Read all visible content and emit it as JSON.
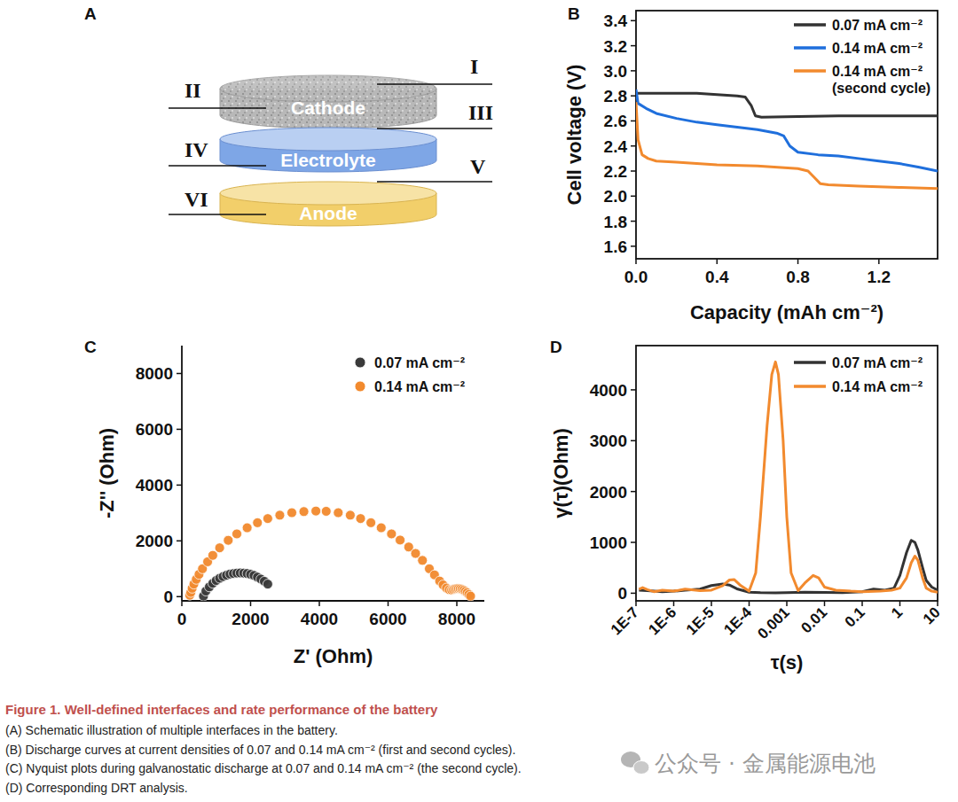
{
  "diagram": {
    "panel": "A",
    "layers": [
      "Cathode",
      "Electrolyte",
      "Anode"
    ],
    "interfaces": [
      "I",
      "II",
      "III",
      "IV",
      "V",
      "VI"
    ]
  },
  "chart_data": [
    {
      "type": "line",
      "panel": "B",
      "x_label": "Capacity (mAh cm⁻²)",
      "y_label": "Cell voltage (V)",
      "xlim": [
        0,
        1.49
      ],
      "ylim": [
        1.5,
        3.48
      ],
      "xticks": [
        {
          "value": 0,
          "label": "0.0"
        },
        0.4,
        0.8,
        1.2
      ],
      "yticks": [
        1.6,
        1.8,
        {
          "value": 2.0,
          "label": "2.0"
        },
        2.2,
        2.4,
        2.6,
        2.8,
        {
          "value": 3.0,
          "label": "3.0"
        },
        3.2,
        3.4
      ],
      "legend": "upper right",
      "series": [
        {
          "name": "0.07 mA cm⁻²",
          "color": "#333333",
          "x": [
            0,
            0.005,
            0.1,
            0.2,
            0.3,
            0.4,
            0.5,
            0.54,
            0.57,
            0.59,
            0.62,
            0.8,
            1.0,
            1.2,
            1.49
          ],
          "values": [
            2.8,
            2.82,
            2.82,
            2.82,
            2.82,
            2.81,
            2.8,
            2.79,
            2.72,
            2.64,
            2.63,
            2.635,
            2.64,
            2.64,
            2.64
          ]
        },
        {
          "name": "0.14 mA cm⁻²",
          "color": "#1f6fdc",
          "x": [
            0,
            0.01,
            0.05,
            0.1,
            0.2,
            0.3,
            0.4,
            0.5,
            0.6,
            0.7,
            0.73,
            0.76,
            0.8,
            0.9,
            1.0,
            1.1,
            1.2,
            1.3,
            1.4,
            1.49
          ],
          "values": [
            2.85,
            2.74,
            2.7,
            2.66,
            2.62,
            2.59,
            2.57,
            2.55,
            2.53,
            2.5,
            2.48,
            2.4,
            2.35,
            2.33,
            2.32,
            2.3,
            2.28,
            2.26,
            2.23,
            2.2
          ]
        },
        {
          "name": "0.14 mA cm⁻² (second cycle)",
          "color": "#f28a2e",
          "x": [
            0,
            0.01,
            0.03,
            0.06,
            0.1,
            0.2,
            0.4,
            0.6,
            0.8,
            0.85,
            0.88,
            0.91,
            0.95,
            1.1,
            1.3,
            1.49
          ],
          "values": [
            2.75,
            2.45,
            2.33,
            2.3,
            2.28,
            2.27,
            2.25,
            2.24,
            2.22,
            2.2,
            2.15,
            2.1,
            2.09,
            2.08,
            2.07,
            2.06
          ]
        }
      ]
    },
    {
      "type": "scatter",
      "panel": "C",
      "x_label": "Z' (Ohm)",
      "y_label": "-Z'' (Ohm)",
      "xlim": [
        0,
        8800
      ],
      "ylim": [
        -150,
        9000
      ],
      "xticks": [
        0,
        2000,
        4000,
        6000,
        8000
      ],
      "yticks": [
        0,
        2000,
        4000,
        6000,
        8000
      ],
      "legend": "upper right",
      "marker": "circle",
      "series": [
        {
          "name": "0.07 mA cm⁻²",
          "color": "#3a3a3a",
          "x": [
            630,
            700,
            800,
            900,
            1000,
            1100,
            1200,
            1300,
            1400,
            1500,
            1600,
            1700,
            1800,
            1900,
            2000,
            2100,
            2200,
            2300,
            2400,
            2500
          ],
          "values": [
            20,
            200,
            350,
            480,
            580,
            660,
            720,
            770,
            810,
            830,
            845,
            850,
            845,
            830,
            800,
            760,
            700,
            630,
            550,
            450
          ]
        },
        {
          "name": "0.14 mA cm⁻²",
          "color": "#f28a2e",
          "x": [
            230,
            260,
            300,
            350,
            420,
            500,
            600,
            750,
            900,
            1100,
            1350,
            1600,
            1900,
            2200,
            2500,
            2850,
            3200,
            3550,
            3900,
            4200,
            4550,
            4900,
            5200,
            5500,
            5800,
            6100,
            6350,
            6600,
            6800,
            7000,
            7200,
            7350,
            7500,
            7600,
            7700,
            7780,
            7850,
            7900,
            7950,
            8000,
            8050,
            8100,
            8150,
            8200,
            8250,
            8300,
            8350,
            8400
          ],
          "values": [
            50,
            150,
            300,
            450,
            620,
            800,
            1000,
            1250,
            1480,
            1750,
            2020,
            2250,
            2470,
            2650,
            2800,
            2920,
            3010,
            3050,
            3070,
            3060,
            3010,
            2920,
            2800,
            2650,
            2470,
            2250,
            2030,
            1780,
            1550,
            1300,
            1000,
            780,
            560,
            420,
            310,
            250,
            240,
            260,
            280,
            290,
            290,
            280,
            260,
            230,
            190,
            140,
            80,
            20
          ]
        }
      ]
    },
    {
      "type": "line",
      "panel": "D",
      "x_label": "τ(s)",
      "y_label": "γ(τ)(Ohm)",
      "log": "x",
      "xlim": [
        1e-07,
        10
      ],
      "ylim": [
        -150,
        4870
      ],
      "xticks": [
        {
          "value": 1e-07,
          "label": "1E-7"
        },
        {
          "value": 1e-06,
          "label": "1E-6"
        },
        {
          "value": 1e-05,
          "label": "1E-5"
        },
        {
          "value": 0.0001,
          "label": "1E-4"
        },
        0.001,
        0.01,
        0.1,
        1,
        10
      ],
      "yticks": [
        0,
        1000,
        2000,
        3000,
        4000
      ],
      "legend": "upper right",
      "series": [
        {
          "name": "0.07 mA cm⁻²",
          "color": "#333333",
          "x": [
            1.2e-07,
            2e-07,
            3e-07,
            5e-07,
            1e-06,
            2e-06,
            5e-06,
            1e-05,
            2e-05,
            3e-05,
            5e-05,
            0.0001,
            0.0002,
            0.0005,
            0.001,
            0.003,
            0.01,
            0.03,
            0.1,
            0.2,
            0.4,
            0.7,
            1,
            1.5,
            2,
            2.5,
            3,
            4,
            5,
            7,
            10
          ],
          "values": [
            60,
            50,
            40,
            30,
            40,
            60,
            80,
            150,
            180,
            160,
            80,
            20,
            10,
            5,
            10,
            20,
            15,
            10,
            30,
            80,
            60,
            100,
            350,
            800,
            1040,
            1000,
            850,
            500,
            250,
            120,
            60
          ]
        },
        {
          "name": "0.14 mA cm⁻²",
          "color": "#f28a2e",
          "x": [
            1.2e-07,
            1.5e-07,
            2e-07,
            3e-07,
            5e-07,
            1e-06,
            2e-06,
            5e-06,
            1e-05,
            2e-05,
            3e-05,
            4e-05,
            6e-05,
            0.0001,
            0.00015,
            0.0002,
            0.0003,
            0.0004,
            0.0005,
            0.0006,
            0.0008,
            0.001,
            0.0013,
            0.002,
            0.003,
            0.005,
            0.007,
            0.01,
            0.02,
            0.05,
            0.1,
            0.3,
            0.6,
            1,
            1.5,
            2,
            2.5,
            3,
            4,
            5,
            7,
            10
          ],
          "values": [
            80,
            110,
            70,
            30,
            60,
            40,
            80,
            50,
            60,
            150,
            260,
            270,
            150,
            40,
            400,
            1500,
            3300,
            4300,
            4550,
            4300,
            3000,
            1500,
            400,
            50,
            200,
            350,
            300,
            120,
            60,
            40,
            30,
            40,
            60,
            100,
            300,
            600,
            730,
            650,
            300,
            100,
            40,
            20
          ]
        }
      ]
    }
  ],
  "caption": {
    "title": "Figure 1.  Well-defined interfaces and rate performance of the battery",
    "lines": [
      "(A) Schematic illustration of multiple interfaces in the battery.",
      "(B) Discharge curves at current densities of 0.07 and 0.14 mA cm⁻² (first and second cycles).",
      "(C) Nyquist plots during galvanostatic discharge at 0.07 and 0.14 mA cm⁻² (the second cycle).",
      "(D) Corresponding DRT analysis."
    ]
  },
  "watermark": "公众号 · 金属能源电池"
}
